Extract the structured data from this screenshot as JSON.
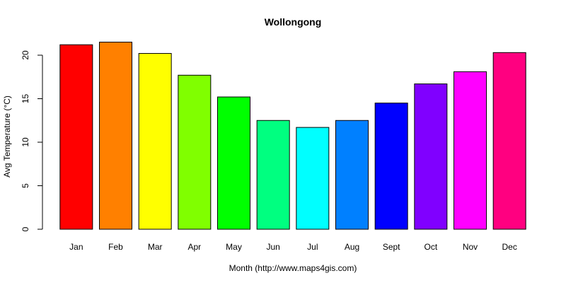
{
  "chart_data": {
    "type": "bar",
    "title": "Wollongong",
    "xlabel": "Month (http://www.maps4gis.com)",
    "ylabel": "Avg Temperature (°C)",
    "categories": [
      "Jan",
      "Feb",
      "Mar",
      "Apr",
      "May",
      "Jun",
      "Jul",
      "Aug",
      "Sept",
      "Oct",
      "Nov",
      "Dec"
    ],
    "values": [
      21.2,
      21.5,
      20.2,
      17.7,
      15.2,
      12.5,
      11.7,
      12.5,
      14.5,
      16.7,
      18.1,
      20.3
    ],
    "colors": [
      "#FF0000",
      "#FF8000",
      "#FFFF00",
      "#80FF00",
      "#00FF00",
      "#00FF80",
      "#00FFFF",
      "#0080FF",
      "#0000FF",
      "#8000FF",
      "#FF00FF",
      "#FF0080"
    ],
    "ylim": [
      0,
      22
    ],
    "yticks": [
      0,
      5,
      10,
      15,
      20
    ],
    "grid": false,
    "legend": "none"
  }
}
